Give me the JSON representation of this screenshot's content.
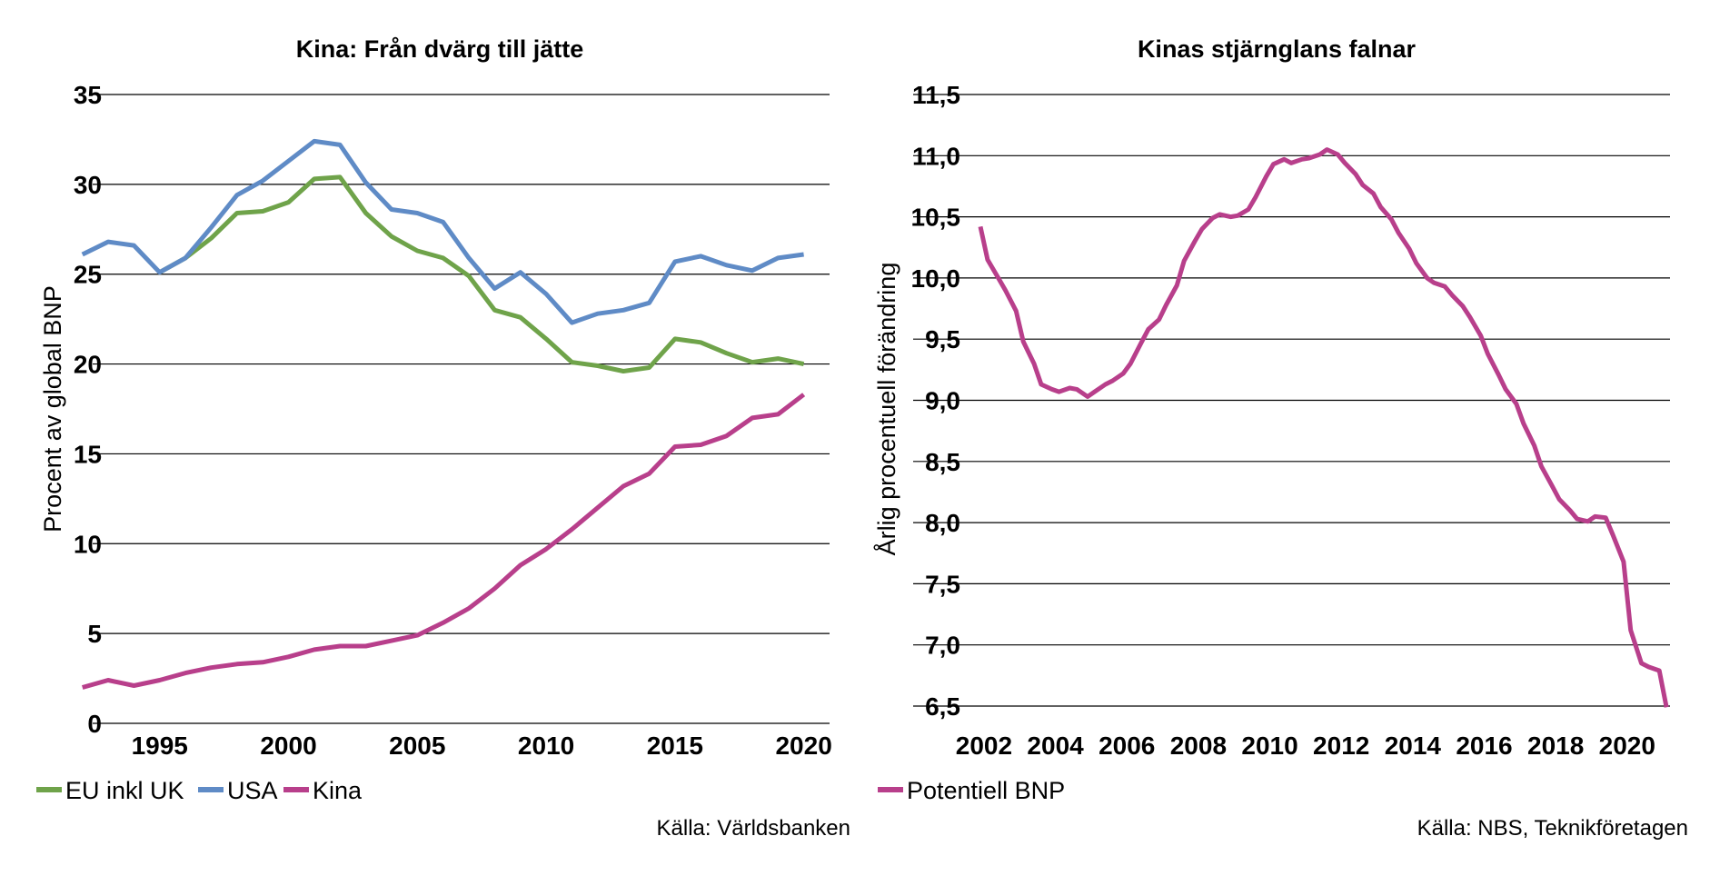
{
  "chart_data": [
    {
      "type": "line",
      "title": "Kina: Från dvärg till jätte",
      "xlabel": "",
      "ylabel": "Procent av global BNP",
      "ylim": [
        0,
        35
      ],
      "yticks": [
        "0",
        "5",
        "10",
        "15",
        "20",
        "25",
        "30",
        "35"
      ],
      "xticks": [
        "1995",
        "2000",
        "2005",
        "2010",
        "2015",
        "2020"
      ],
      "xlim": [
        1992.4,
        2021.0
      ],
      "grid": "horizontal",
      "legend_position": "bottom-left",
      "series": [
        {
          "name": "EU inkl UK",
          "color": "#6FA34A",
          "x": [
            1995,
            1996,
            1997,
            1998,
            1999,
            2000,
            2001,
            2002,
            2003,
            2004,
            2005,
            2006,
            2007,
            2008,
            2009,
            2010,
            2011,
            2012,
            2013,
            2014,
            2015,
            2016,
            2017,
            2018,
            2019,
            2020
          ],
          "values": [
            25.1,
            25.9,
            27.0,
            28.4,
            28.5,
            29.0,
            30.3,
            30.4,
            28.4,
            27.1,
            26.3,
            25.9,
            24.9,
            23.0,
            22.6,
            21.4,
            20.1,
            19.9,
            19.6,
            19.8,
            21.4,
            21.2,
            20.6,
            20.1,
            20.3,
            20.0
          ]
        },
        {
          "name": "USA",
          "color": "#5F8BC6",
          "x": [
            1992,
            1993,
            1994,
            1995,
            1996,
            1997,
            1998,
            1999,
            2000,
            2001,
            2002,
            2003,
            2004,
            2005,
            2006,
            2007,
            2008,
            2009,
            2010,
            2011,
            2012,
            2013,
            2014,
            2015,
            2016,
            2017,
            2018,
            2019,
            2020
          ],
          "values": [
            26.1,
            26.8,
            26.6,
            25.1,
            25.9,
            27.6,
            29.4,
            30.2,
            31.3,
            32.4,
            32.2,
            30.1,
            28.6,
            28.4,
            27.9,
            25.9,
            24.2,
            25.1,
            23.9,
            22.3,
            22.8,
            23.0,
            23.4,
            25.7,
            26.0,
            25.5,
            25.2,
            25.9,
            26.1
          ]
        },
        {
          "name": "Kina",
          "color": "#B83F8B",
          "x": [
            1992,
            1993,
            1994,
            1995,
            1996,
            1997,
            1998,
            1999,
            2000,
            2001,
            2002,
            2003,
            2004,
            2005,
            2006,
            2007,
            2008,
            2009,
            2010,
            2011,
            2012,
            2013,
            2014,
            2015,
            2016,
            2017,
            2018,
            2019,
            2020
          ],
          "values": [
            2.0,
            2.4,
            2.1,
            2.4,
            2.8,
            3.1,
            3.3,
            3.4,
            3.7,
            4.1,
            4.3,
            4.3,
            4.6,
            4.9,
            5.6,
            6.4,
            7.5,
            8.8,
            9.7,
            10.8,
            12.0,
            13.2,
            13.9,
            15.4,
            15.5,
            16.0,
            17.0,
            17.2,
            18.3
          ]
        }
      ],
      "source": "Källa: Världsbanken"
    },
    {
      "type": "line",
      "title": "Kinas stjärnglans falnar",
      "xlabel": "",
      "ylabel": "Årlig procentuell förändring",
      "ylim": [
        6.5,
        11.5
      ],
      "yticks": [
        "6,5",
        "7,0",
        "7,5",
        "8,0",
        "8,5",
        "9,0",
        "9,5",
        "10,0",
        "10,5",
        "11,0",
        "11,5"
      ],
      "xticks": [
        "2002",
        "2004",
        "2006",
        "2008",
        "2010",
        "2012",
        "2014",
        "2016",
        "2018",
        "2020"
      ],
      "xlim": [
        2001.9,
        2021.2
      ],
      "grid": "horizontal",
      "legend_position": "bottom-left",
      "series": [
        {
          "name": "Potentiell BNP",
          "color": "#B83F8B",
          "x": [
            2001.9,
            2002.1,
            2002.4,
            2002.6,
            2002.9,
            2003.1,
            2003.4,
            2003.6,
            2003.9,
            2004.1,
            2004.4,
            2004.6,
            2004.9,
            2005.1,
            2005.4,
            2005.6,
            2005.9,
            2006.1,
            2006.4,
            2006.6,
            2006.9,
            2007.1,
            2007.4,
            2007.6,
            2007.9,
            2008.1,
            2008.4,
            2008.6,
            2008.9,
            2009.1,
            2009.4,
            2009.6,
            2009.9,
            2010.1,
            2010.4,
            2010.6,
            2010.9,
            2011.1,
            2011.4,
            2011.6,
            2011.9,
            2012.1,
            2012.4,
            2012.6,
            2012.9,
            2013.1,
            2013.4,
            2013.6,
            2013.9,
            2014.1,
            2014.4,
            2014.6,
            2014.9,
            2015.1,
            2015.4,
            2015.6,
            2015.9,
            2016.1,
            2016.4,
            2016.6,
            2016.9,
            2017.1,
            2017.4,
            2017.6,
            2017.9,
            2018.1,
            2018.4,
            2018.6,
            2018.9,
            2019.1,
            2019.4,
            2019.6,
            2019.9,
            2020.1,
            2020.4,
            2020.6,
            2020.9,
            2021.1
          ],
          "values": [
            10.42,
            10.15,
            10.0,
            9.9,
            9.73,
            9.48,
            9.3,
            9.13,
            9.09,
            9.07,
            9.1,
            9.09,
            9.03,
            9.07,
            9.13,
            9.16,
            9.22,
            9.3,
            9.47,
            9.58,
            9.66,
            9.78,
            9.94,
            10.14,
            10.3,
            10.4,
            10.49,
            10.52,
            10.5,
            10.51,
            10.56,
            10.66,
            10.83,
            10.93,
            10.97,
            10.94,
            10.97,
            10.98,
            11.01,
            11.05,
            11.01,
            10.94,
            10.85,
            10.76,
            10.69,
            10.58,
            10.48,
            10.37,
            10.24,
            10.12,
            10.0,
            9.96,
            9.93,
            9.86,
            9.77,
            9.68,
            9.53,
            9.38,
            9.21,
            9.09,
            8.97,
            8.81,
            8.63,
            8.46,
            8.3,
            8.19,
            8.1,
            8.03,
            8.01,
            8.05,
            8.04,
            7.9,
            7.68,
            7.12,
            6.85,
            6.82,
            6.79,
            6.49
          ]
        }
      ],
      "source": "Källa: NBS, Teknikföretagen"
    }
  ]
}
